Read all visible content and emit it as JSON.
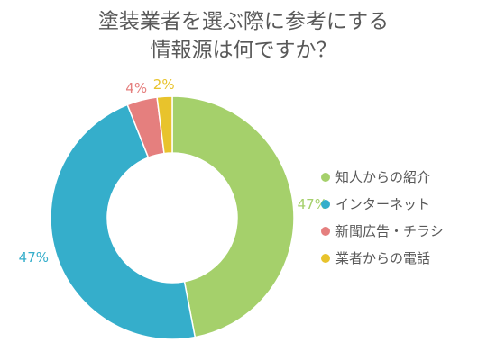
{
  "chart_data": {
    "type": "pie",
    "title_lines": [
      "塗装業者を選ぶ際に参考にする",
      "情報源は何ですか？"
    ],
    "categories": [
      "知人からの紹介",
      "インターネット",
      "新聞広告・チラシ",
      "業者からの電話"
    ],
    "values": [
      47,
      47,
      4,
      2
    ],
    "value_labels": [
      "47%",
      "47%",
      "4%",
      "2%"
    ],
    "colors": [
      "#a5d06b",
      "#35aecb",
      "#e57f7e",
      "#e8c32c"
    ],
    "donut": true,
    "legend_position": "right"
  }
}
